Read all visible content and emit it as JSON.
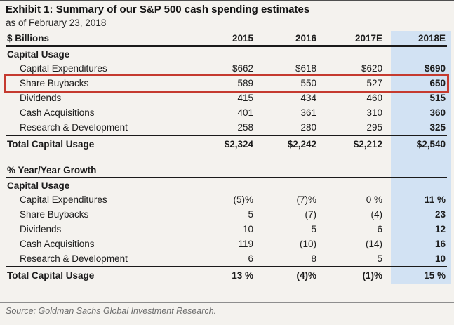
{
  "chart_data": {
    "type": "table",
    "title": "Exhibit 1: Summary of our S&P 500 cash spending estimates",
    "subtitle": "as of February 23, 2018",
    "unit_header": "$ Billions",
    "columns": [
      "2015",
      "2016",
      "2017E",
      "2018E"
    ],
    "highlight_column": "2018E",
    "annotation": {
      "row": "Share Buybacks",
      "style": "red-outline-box"
    },
    "sections": [
      {
        "group_header": "",
        "name": "Capital Usage",
        "rows": [
          {
            "label": "Capital Expenditures",
            "values": [
              "$662",
              "$618",
              "$620",
              "$690"
            ]
          },
          {
            "label": "Share Buybacks",
            "values": [
              "589",
              "550",
              "527",
              "650"
            ],
            "annotated": true
          },
          {
            "label": "Dividends",
            "values": [
              "415",
              "434",
              "460",
              "515"
            ]
          },
          {
            "label": "Cash Acquisitions",
            "values": [
              "401",
              "361",
              "310",
              "360"
            ]
          },
          {
            "label": "Research & Development",
            "values": [
              "258",
              "280",
              "295",
              "325"
            ]
          }
        ],
        "total": {
          "label": "Total Capital Usage",
          "values": [
            "$2,324",
            "$2,242",
            "$2,212",
            "$2,540"
          ]
        }
      },
      {
        "group_header": "% Year/Year Growth",
        "name": "Capital Usage",
        "rows": [
          {
            "label": "Capital Expenditures",
            "values": [
              "(5)%",
              "(7)%",
              "0 %",
              "11 %"
            ]
          },
          {
            "label": "Share Buybacks",
            "values": [
              "5",
              "(7)",
              "(4)",
              "23"
            ]
          },
          {
            "label": "Dividends",
            "values": [
              "10",
              "5",
              "6",
              "12"
            ]
          },
          {
            "label": "Cash Acquisitions",
            "values": [
              "119",
              "(10)",
              "(14)",
              "16"
            ]
          },
          {
            "label": "Research & Development",
            "values": [
              "6",
              "8",
              "5",
              "10"
            ]
          }
        ],
        "total": {
          "label": "Total Capital Usage",
          "values": [
            "13 %",
            "(4)%",
            "(1)%",
            "15 %"
          ]
        }
      }
    ],
    "source": "Source: Goldman Sachs Global Investment Research.",
    "colors": {
      "column_highlight": "#d2e2f3",
      "annotation_red": "#c53a2f"
    }
  }
}
